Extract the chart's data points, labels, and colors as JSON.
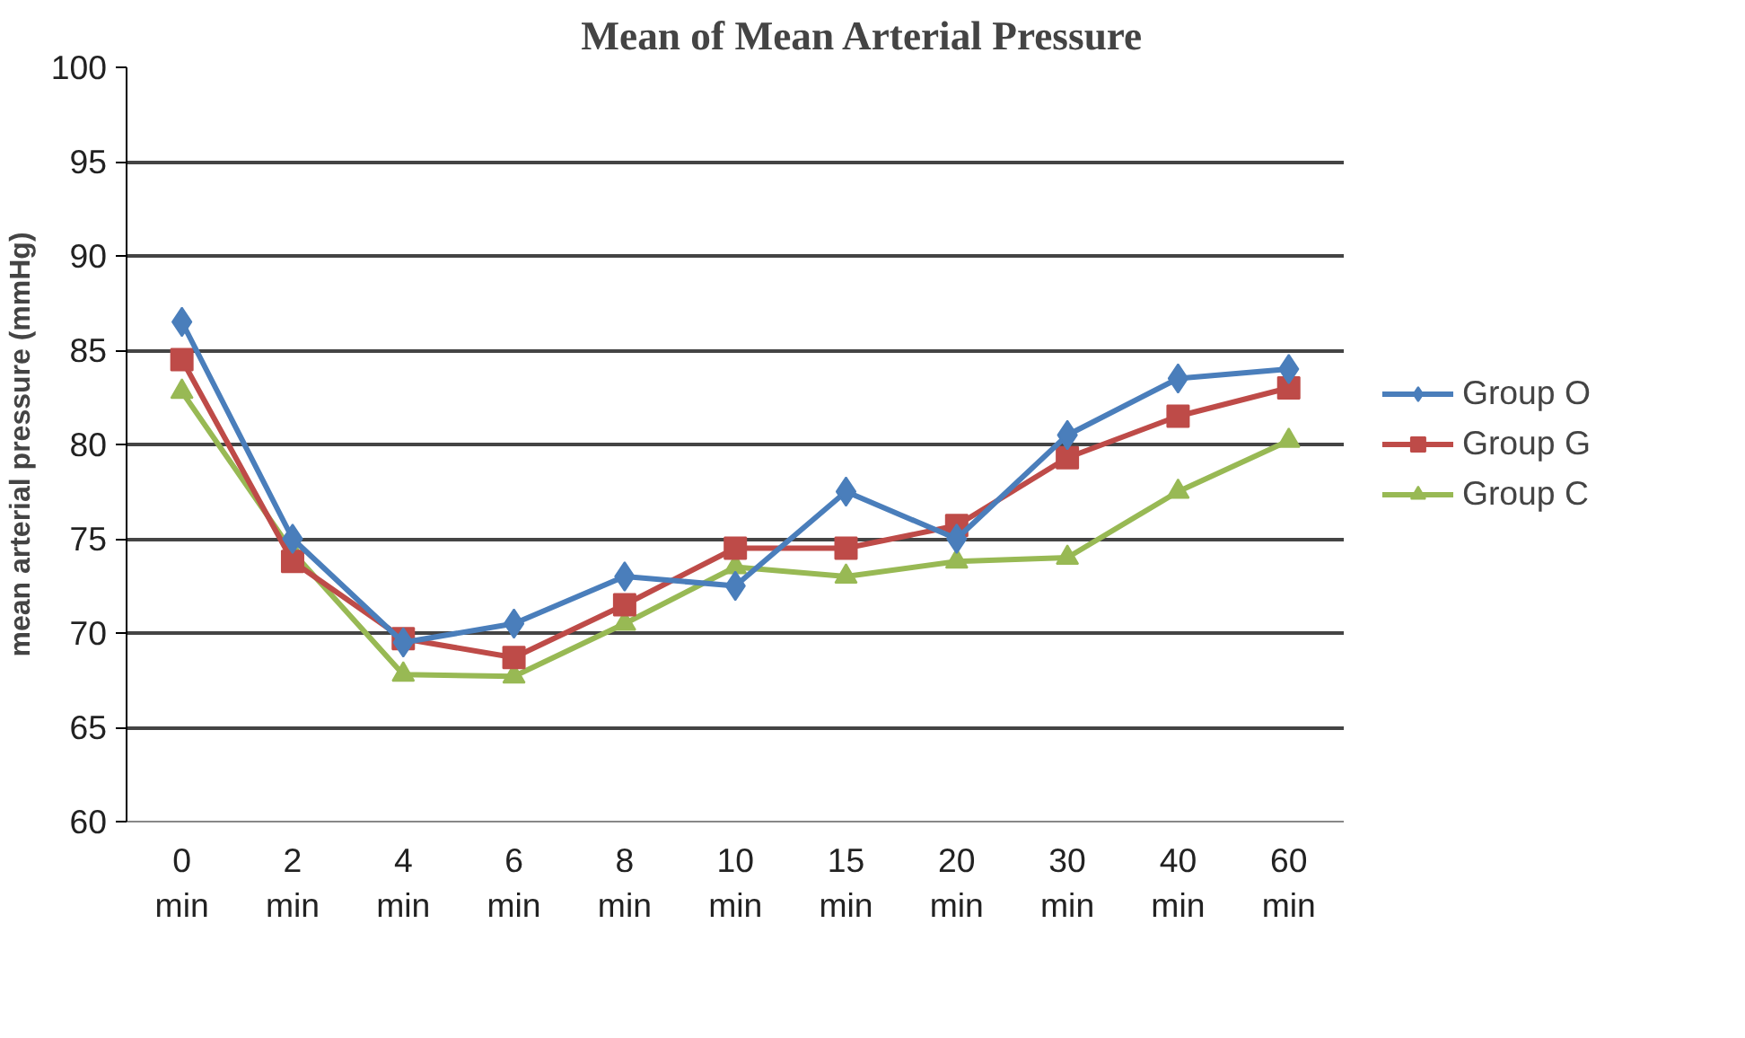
{
  "chart_data": {
    "type": "line",
    "title": "Mean of Mean Arterial Pressure",
    "ylabel": "mean arterial pressure (mmHg)",
    "categories": [
      "0\nmin",
      "2\nmin",
      "4\nmin",
      "6\nmin",
      "8\nmin",
      "10\nmin",
      "15\nmin",
      "20\nmin",
      "30\nmin",
      "40\nmin",
      "60\nmin"
    ],
    "series": [
      {
        "name": "Group O",
        "color": "#4a7ebb",
        "marker": "diamond",
        "values": [
          86.5,
          75,
          69.5,
          70.5,
          73,
          72.5,
          77.5,
          75,
          80.5,
          83.5,
          84
        ]
      },
      {
        "name": "Group G",
        "color": "#be4b48",
        "marker": "square",
        "values": [
          84.5,
          73.8,
          69.7,
          68.7,
          71.5,
          74.5,
          74.5,
          75.7,
          79.3,
          81.5,
          83
        ]
      },
      {
        "name": "Group C",
        "color": "#98b954",
        "marker": "triangle",
        "values": [
          82.8,
          74.3,
          67.8,
          67.7,
          70.5,
          73.5,
          73,
          73.8,
          74,
          77.5,
          80.2
        ]
      }
    ],
    "ylim": [
      60,
      100
    ],
    "yticks": [
      60,
      65,
      70,
      75,
      80,
      85,
      90,
      95,
      100
    ],
    "grid": "y",
    "legend": "right",
    "line_style": "solid"
  }
}
